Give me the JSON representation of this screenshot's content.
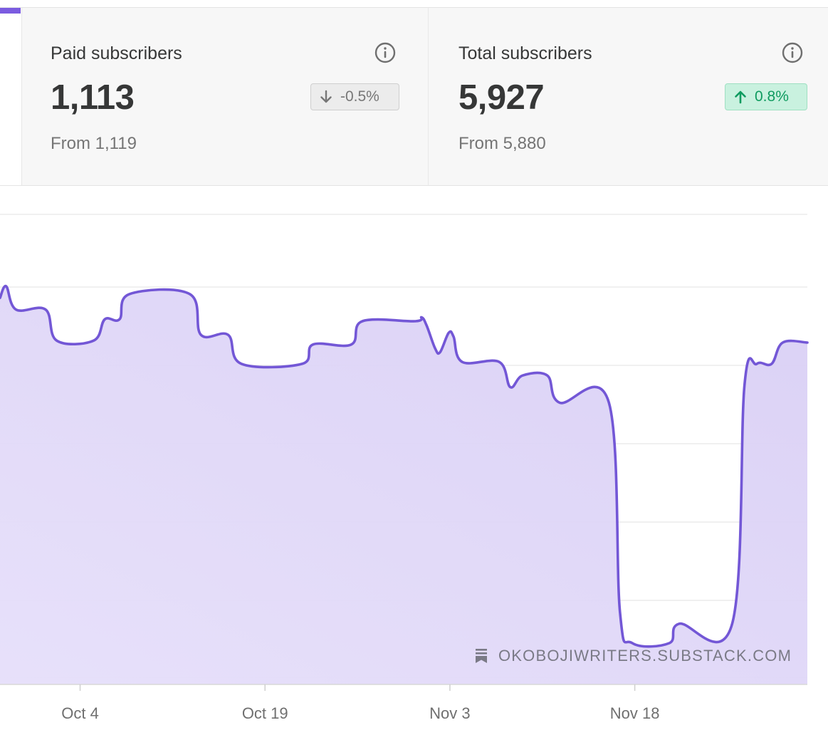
{
  "metrics": {
    "paid": {
      "title": "Paid subscribers",
      "value": "1,113",
      "change": "-0.5%",
      "direction": "down",
      "from": "From 1,119",
      "info_icon": "info-circle-icon",
      "arrow_icon": "arrow-down-icon"
    },
    "total": {
      "title": "Total subscribers",
      "value": "5,927",
      "change": "0.8%",
      "direction": "up",
      "from": "From 5,880",
      "info_icon": "info-circle-icon",
      "arrow_icon": "arrow-up-icon"
    }
  },
  "colors": {
    "accent": "#7b5ce0",
    "line": "#7357d6",
    "fill": "#ddd3f7",
    "positive": "#0f9b5f",
    "negative": "#777777"
  },
  "watermark": {
    "text": "OKOBOJIWRITERS.SUBSTACK.COM",
    "icon": "substack-bookmark-icon"
  },
  "chart_data": {
    "type": "area",
    "xlabel": "",
    "ylabel": "",
    "grid": true,
    "x_ticks": [
      "Oct 4",
      "Oct 19",
      "Nov 3",
      "Nov 18"
    ],
    "series": [
      {
        "points": [
          {
            "t": 0.0,
            "v": 5.6
          },
          {
            "t": 0.5,
            "v": 5.9
          },
          {
            "t": 1.3,
            "v": 5.3
          },
          {
            "t": 3.7,
            "v": 5.3
          },
          {
            "t": 4.6,
            "v": 4.5
          },
          {
            "t": 7.6,
            "v": 4.5
          },
          {
            "t": 8.5,
            "v": 5.05
          },
          {
            "t": 9.7,
            "v": 5.05
          },
          {
            "t": 10.5,
            "v": 5.7
          },
          {
            "t": 15.4,
            "v": 5.7
          },
          {
            "t": 16.3,
            "v": 4.65
          },
          {
            "t": 18.5,
            "v": 4.65
          },
          {
            "t": 19.6,
            "v": 3.9
          },
          {
            "t": 24.5,
            "v": 3.9
          },
          {
            "t": 25.4,
            "v": 4.4
          },
          {
            "t": 28.5,
            "v": 4.4
          },
          {
            "t": 29.4,
            "v": 5.0
          },
          {
            "t": 33.7,
            "v": 5.0
          },
          {
            "t": 34.2,
            "v": 5.1
          },
          {
            "t": 34.6,
            "v": 4.9
          },
          {
            "t": 35.3,
            "v": 4.3
          },
          {
            "t": 35.7,
            "v": 4.2
          },
          {
            "t": 36.4,
            "v": 4.7
          },
          {
            "t": 36.8,
            "v": 4.6
          },
          {
            "t": 37.5,
            "v": 3.95
          },
          {
            "t": 40.5,
            "v": 3.95
          },
          {
            "t": 41.4,
            "v": 3.3
          },
          {
            "t": 42.4,
            "v": 3.6
          },
          {
            "t": 44.4,
            "v": 3.6
          },
          {
            "t": 45.4,
            "v": 2.9
          },
          {
            "t": 49.4,
            "v": 2.9
          },
          {
            "t": 50.3,
            "v": -2.5
          },
          {
            "t": 51.3,
            "v": -3.3
          },
          {
            "t": 54.3,
            "v": -3.3
          },
          {
            "t": 55.1,
            "v": -2.8
          },
          {
            "t": 59.4,
            "v": -2.8
          },
          {
            "t": 60.4,
            "v": 3.35
          },
          {
            "t": 61.4,
            "v": 3.9
          },
          {
            "t": 62.6,
            "v": 3.9
          },
          {
            "t": 63.5,
            "v": 4.45
          },
          {
            "t": 65.5,
            "v": 4.45
          }
        ]
      }
    ],
    "x_domain": [
      0,
      65.5
    ],
    "x_tick_positions": [
      6.5,
      21.5,
      36.5,
      51.5
    ],
    "y_domain": [
      -3.3,
      5.9
    ]
  }
}
